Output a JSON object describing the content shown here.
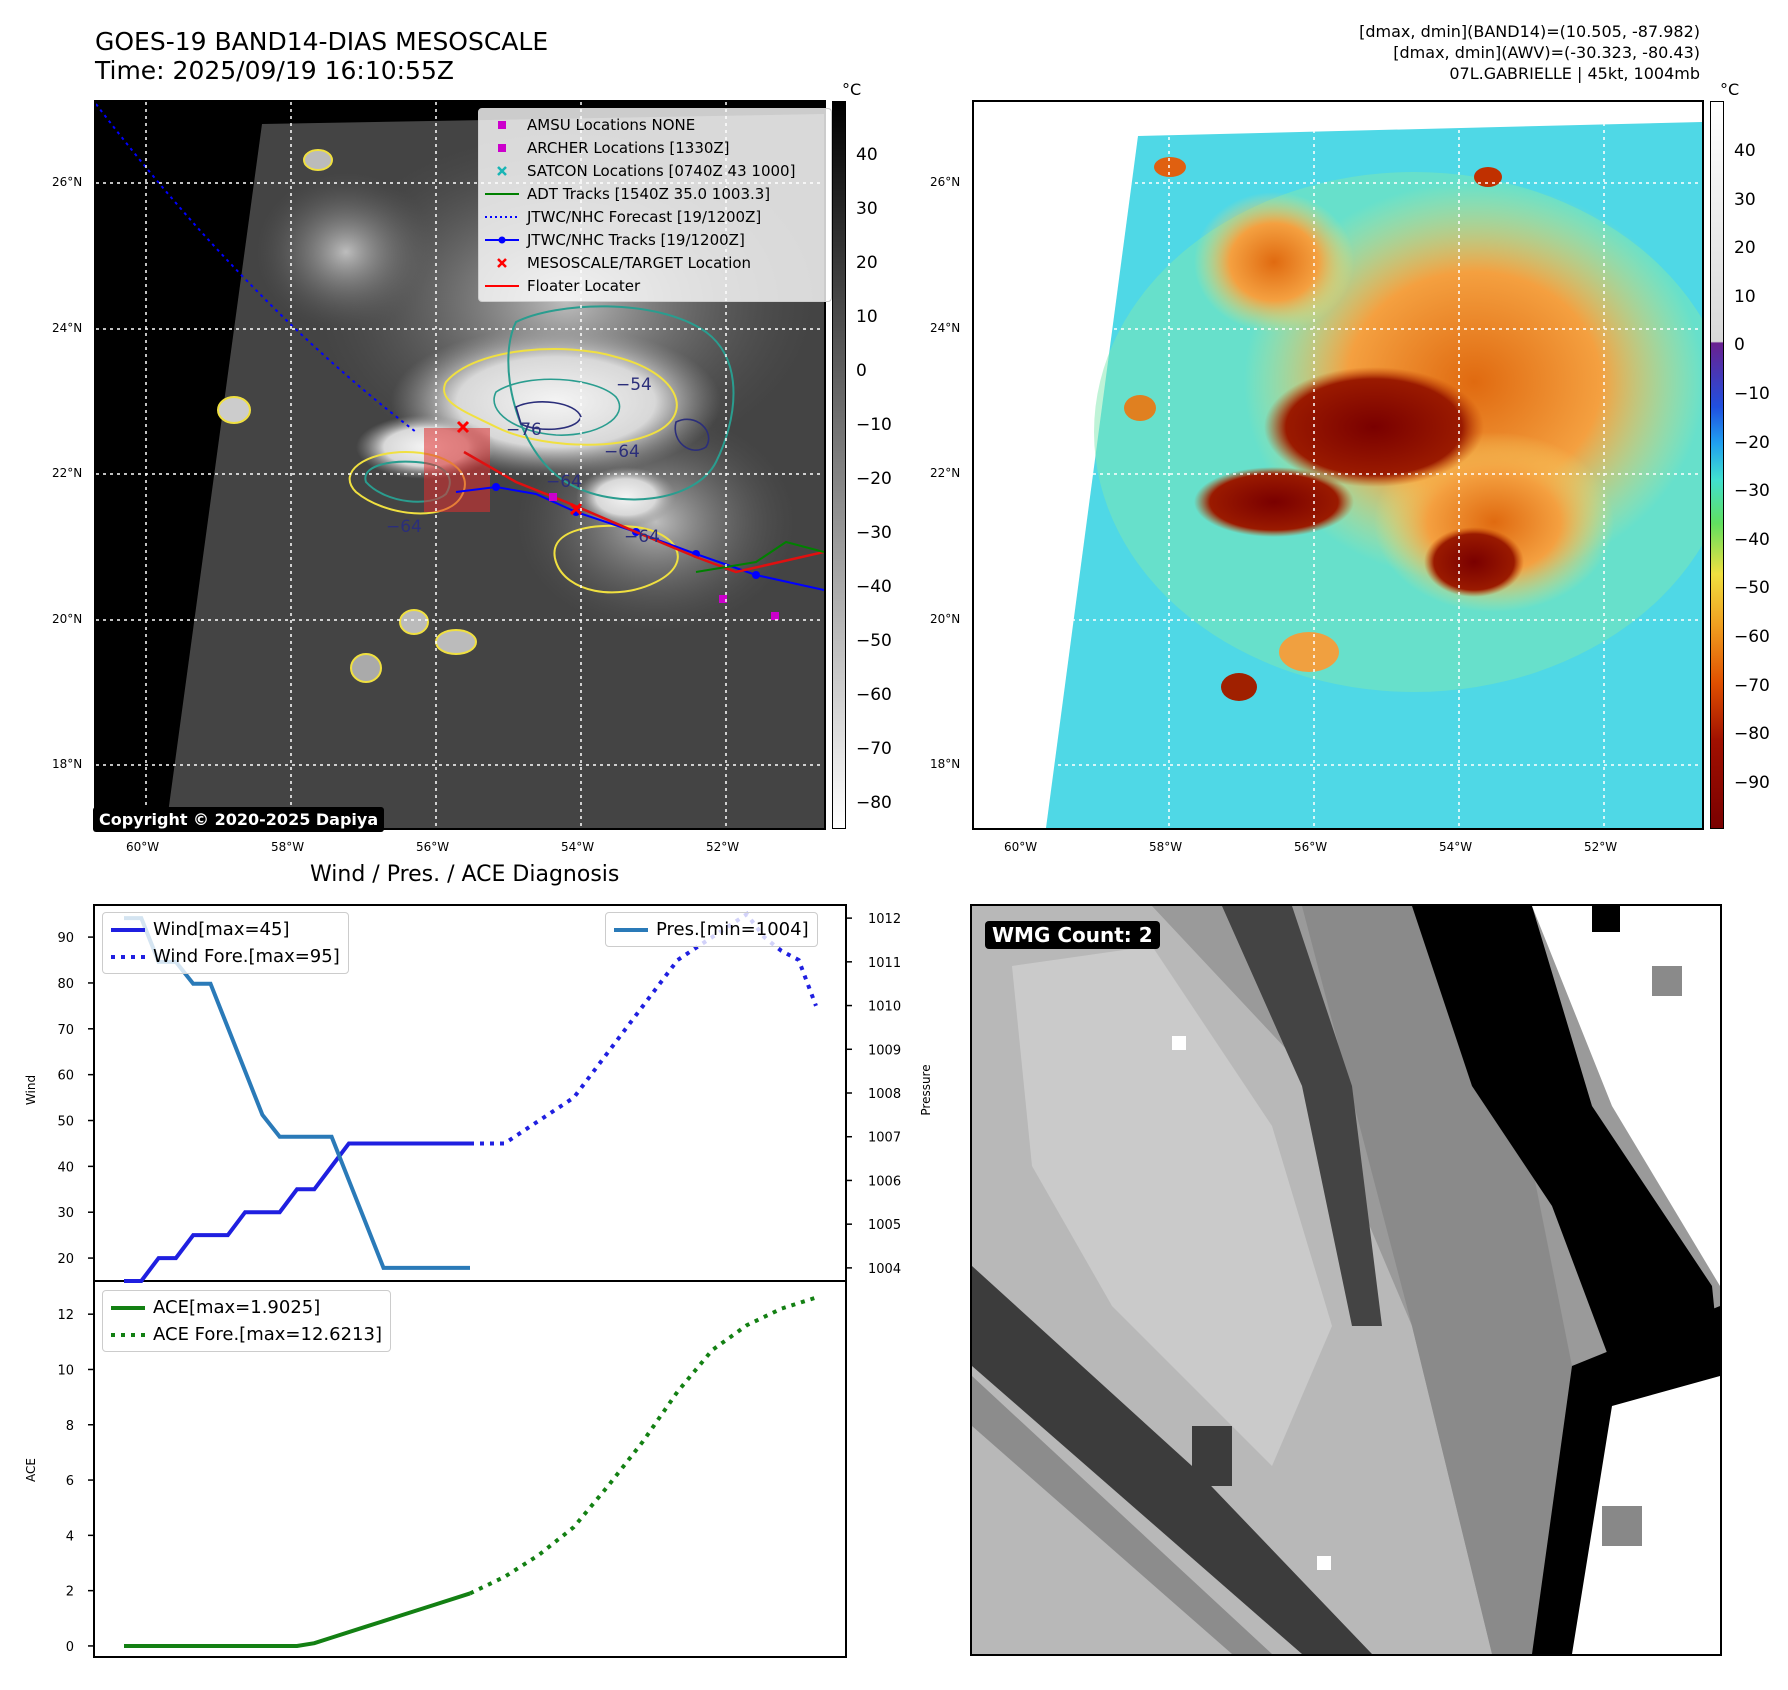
{
  "header": {
    "title_line1": "GOES-19 BAND14-DIAS MESOSCALE",
    "title_line2": "Time: 2025/09/19 16:10:55Z",
    "info_line1": "[dmax, dmin](BAND14)=(10.505, -87.982)",
    "info_line2": "[dmax, dmin](AWV)=(-30.323, -80.43)",
    "info_line3": "07L.GABRIELLE | 45kt, 1004mb"
  },
  "map_axes": {
    "lat_labels": [
      "26°N",
      "24°N",
      "22°N",
      "20°N",
      "18°N"
    ],
    "lon_labels": [
      "60°W",
      "58°W",
      "56°W",
      "54°W",
      "52°W"
    ]
  },
  "colorbar_left": {
    "unit": "°C",
    "ticks": [
      "40",
      "30",
      "20",
      "10",
      "0",
      "−10",
      "−20",
      "−30",
      "−40",
      "−50",
      "−60",
      "−70",
      "−80"
    ]
  },
  "colorbar_right": {
    "unit": "°C",
    "ticks": [
      "40",
      "30",
      "20",
      "10",
      "0",
      "−10",
      "−20",
      "−30",
      "−40",
      "−50",
      "−60",
      "−70",
      "−80",
      "−90"
    ]
  },
  "map_legend": [
    {
      "label": "AMSU Locations NONE",
      "symbol": "square",
      "color": "#cc00cc"
    },
    {
      "label": "ARCHER Locations [1330Z]",
      "symbol": "square",
      "color": "#cc00cc"
    },
    {
      "label": "SATCON Locations [0740Z 43 1000]",
      "symbol": "x",
      "color": "#19b5b5"
    },
    {
      "label": "ADT Tracks [1540Z 35.0 1003.3]",
      "symbol": "line",
      "color": "#008000"
    },
    {
      "label": "JTWC/NHC Forecast [19/1200Z]",
      "symbol": "dotted",
      "color": "#0000ff"
    },
    {
      "label": "JTWC/NHC Tracks [19/1200Z]",
      "symbol": "line-dot",
      "color": "#0000ff"
    },
    {
      "label": "MESOSCALE/TARGET Location",
      "symbol": "x",
      "color": "#ff0000"
    },
    {
      "label": "Floater Locater",
      "symbol": "line",
      "color": "#ff0000"
    }
  ],
  "contour_labels": [
    "−76",
    "−64",
    "−64",
    "−54",
    "−64",
    "−64"
  ],
  "copyright": "Copyright © 2020-2025 Dapiya",
  "wmg_label": "WMG Count: 2",
  "colors": {
    "wind": "#1f1fe0",
    "pressure": "#2a7ab8",
    "ace": "#138013",
    "contour_yellow": "#f0e040",
    "contour_teal": "#2a9d8f",
    "contour_navy": "#2b2e7a",
    "track_red": "#e01010"
  },
  "chart_data": [
    {
      "type": "line",
      "title": "Wind / Pres. / ACE Diagnosis",
      "ylabel": "Wind",
      "ylabel_right": "Pressure",
      "ylim": [
        15,
        97
      ],
      "ylim_right": [
        1003.7,
        1012.3
      ],
      "yticks": [
        20,
        30,
        40,
        50,
        60,
        70,
        80,
        90
      ],
      "yticks_right": [
        1004,
        1005,
        1006,
        1007,
        1008,
        1009,
        1010,
        1011,
        1012
      ],
      "xlim": [
        0,
        40
      ],
      "series": [
        {
          "name": "Wind[max=45]",
          "style": "solid",
          "x": [
            0,
            1,
            2,
            3,
            4,
            5,
            6,
            7,
            8,
            9,
            10,
            11,
            12,
            13,
            14,
            15,
            16,
            17,
            18,
            19,
            20
          ],
          "values": [
            15,
            15,
            20,
            20,
            25,
            25,
            25,
            30,
            30,
            30,
            35,
            35,
            40,
            45,
            45,
            45,
            45,
            45,
            45,
            45,
            45
          ]
        },
        {
          "name": "Wind Fore.[max=95]",
          "style": "dotted",
          "x": [
            20,
            21,
            22,
            24,
            26,
            28,
            30,
            32,
            34,
            36,
            37,
            38,
            39,
            40
          ],
          "values": [
            45,
            45,
            45,
            50,
            55,
            65,
            75,
            85,
            90,
            95,
            90,
            87,
            85,
            75
          ]
        },
        {
          "name": "Pres.[min=1004]",
          "style": "solid",
          "axis": "right",
          "x": [
            0,
            1,
            2,
            3,
            4,
            5,
            6,
            7,
            8,
            9,
            10,
            11,
            12,
            13,
            14,
            15,
            16,
            17,
            18,
            19,
            20
          ],
          "values": [
            1012,
            1012,
            1011,
            1011,
            1010.5,
            1010.5,
            1009.5,
            1008.5,
            1007.5,
            1007,
            1007,
            1007,
            1007,
            1006,
            1005,
            1004,
            1004,
            1004,
            1004,
            1004,
            1004
          ]
        }
      ]
    },
    {
      "type": "line",
      "ylabel": "ACE",
      "ylim": [
        -0.4,
        13.2
      ],
      "yticks": [
        0,
        2,
        4,
        6,
        8,
        10,
        12
      ],
      "xlim": [
        0,
        40
      ],
      "series": [
        {
          "name": "ACE[max=1.9025]",
          "style": "solid",
          "x": [
            0,
            2,
            4,
            6,
            8,
            10,
            11,
            12,
            14,
            16,
            18,
            20
          ],
          "values": [
            0,
            0,
            0,
            0,
            0,
            0,
            0.1,
            0.3,
            0.7,
            1.1,
            1.5,
            1.9
          ]
        },
        {
          "name": "ACE Fore.[max=12.6213]",
          "style": "dotted",
          "x": [
            20,
            22,
            24,
            26,
            28,
            30,
            32,
            34,
            36,
            38,
            40
          ],
          "values": [
            1.9,
            2.5,
            3.3,
            4.3,
            5.8,
            7.4,
            9.2,
            10.7,
            11.6,
            12.2,
            12.6
          ]
        }
      ]
    }
  ]
}
